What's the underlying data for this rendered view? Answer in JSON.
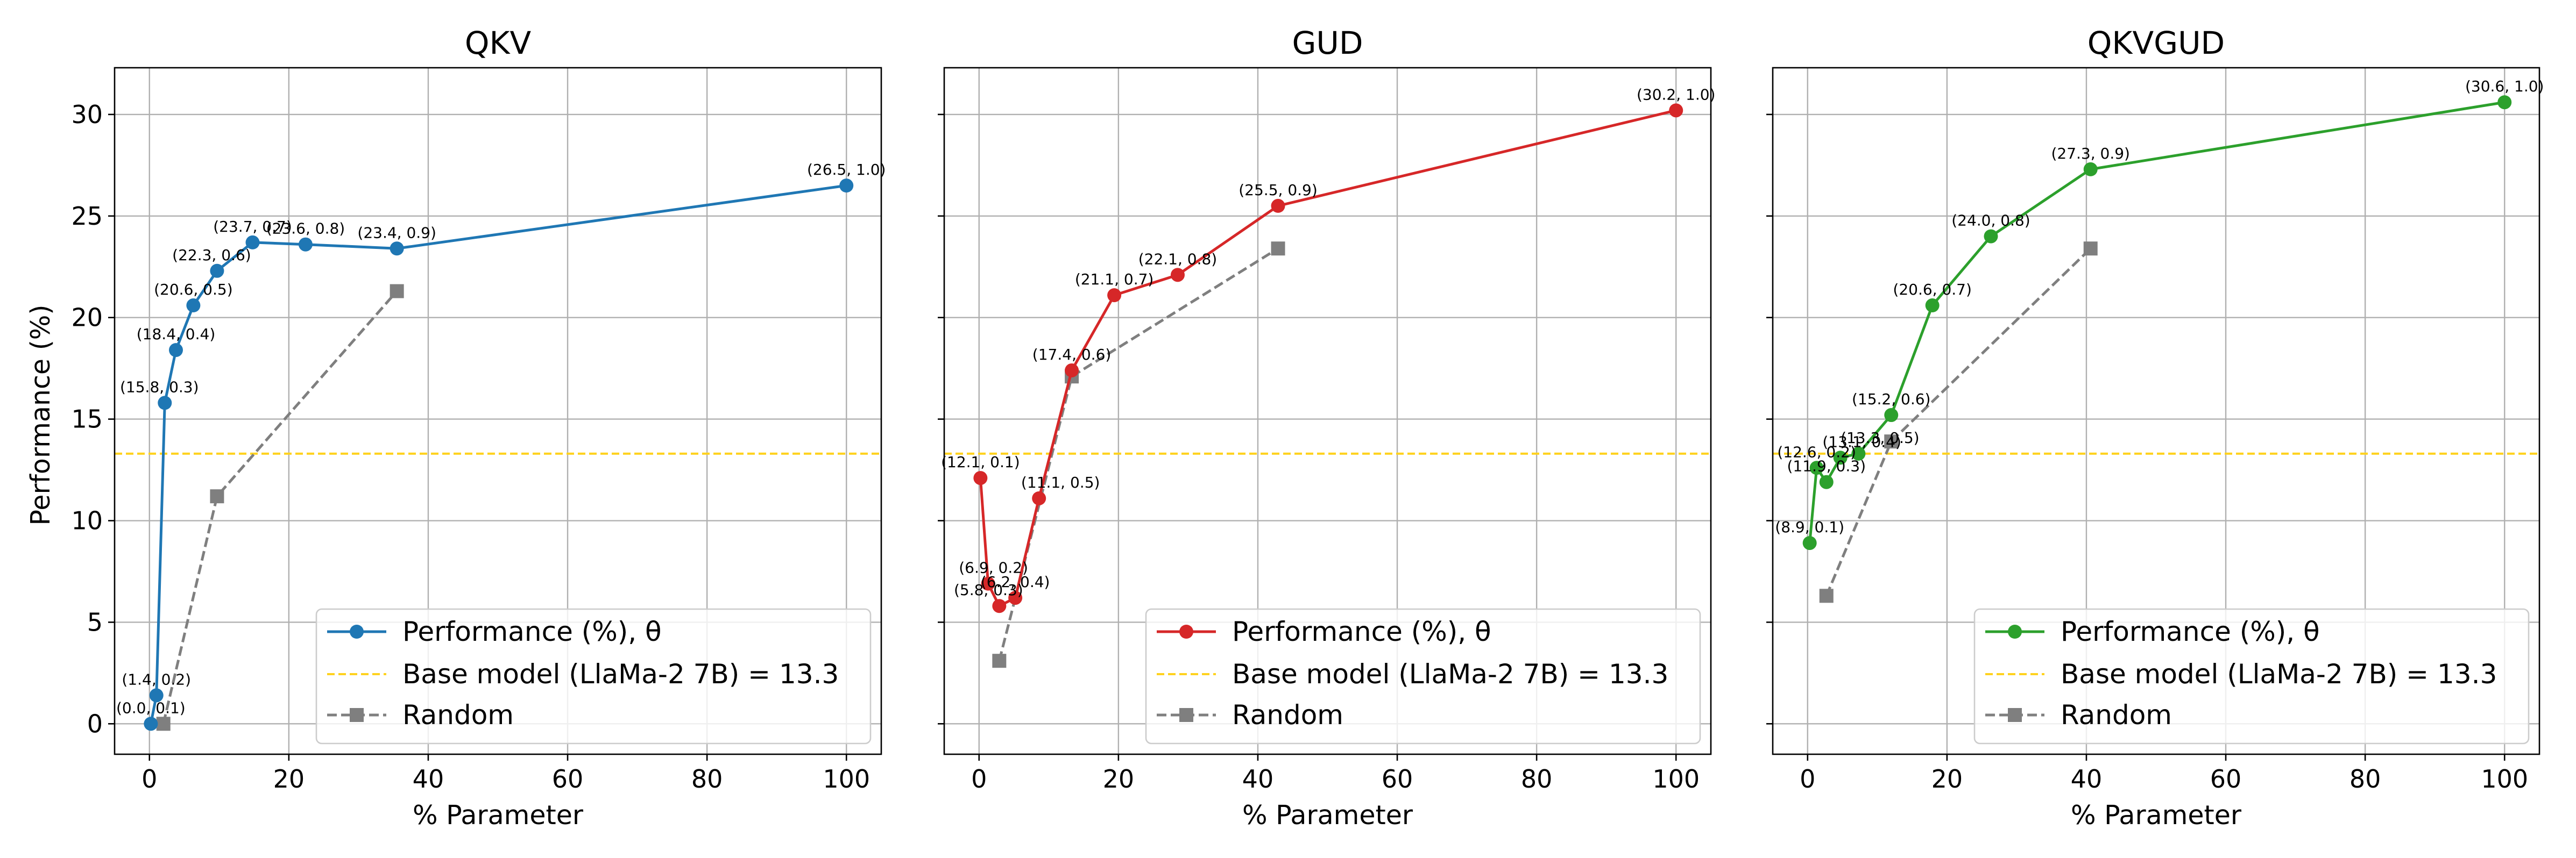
{
  "ylabel": "Performance (%)",
  "chart_data": [
    {
      "type": "line",
      "title": "QKV",
      "xlabel": "% Parameter",
      "xlim": [
        -5,
        105
      ],
      "ylim": [
        -1.5,
        32.3
      ],
      "xticks": [
        0,
        20,
        40,
        60,
        80,
        100
      ],
      "yticks": [
        0,
        5,
        10,
        15,
        20,
        25,
        30
      ],
      "grid": true,
      "legend_position": "lower-right",
      "color": "#1f77b4",
      "baseline": {
        "name": "Base model (LlaMa-2 7B) = 13.3",
        "value": 13.3,
        "color": "#ffd21f"
      },
      "series": [
        {
          "name": "Performance (%), θ",
          "x": [
            0.2,
            1.0,
            2.2,
            3.8,
            6.3,
            9.7,
            14.8,
            22.4,
            35.5,
            100
          ],
          "y": [
            0.0,
            1.4,
            15.8,
            18.4,
            20.6,
            22.3,
            23.7,
            23.6,
            23.4,
            26.5
          ],
          "labels": [
            "(0.0, 0.1)",
            "(1.4, 0.2)",
            "(15.8, 0.3)",
            "(18.4, 0.4)",
            "(20.6, 0.5)",
            "(22.3, 0.6)",
            "(23.7, 0.7)",
            "(23.6, 0.8)",
            "(23.4, 0.9)",
            "(26.5, 1.0)"
          ]
        },
        {
          "name": "Random",
          "color": "#7f7f7f",
          "x": [
            2.0,
            9.7,
            35.5
          ],
          "y": [
            0.0,
            11.2,
            21.3
          ]
        }
      ]
    },
    {
      "type": "line",
      "title": "GUD",
      "xlabel": "% Parameter",
      "xlim": [
        -5,
        105
      ],
      "ylim": [
        -1.5,
        32.3
      ],
      "xticks": [
        0,
        20,
        40,
        60,
        80,
        100
      ],
      "yticks": [
        0,
        5,
        10,
        15,
        20,
        25,
        30
      ],
      "grid": true,
      "legend_position": "lower-right",
      "color": "#d62728",
      "baseline": {
        "name": "Base model (LlaMa-2 7B) = 13.3",
        "value": 13.3,
        "color": "#ffd21f"
      },
      "series": [
        {
          "name": "Performance (%), θ",
          "x": [
            0.2,
            1.3,
            2.9,
            5.2,
            8.6,
            13.3,
            19.4,
            28.5,
            42.9,
            100
          ],
          "y": [
            12.1,
            6.9,
            5.8,
            6.2,
            11.1,
            17.4,
            21.1,
            22.1,
            25.5,
            30.2
          ],
          "labels": [
            "(12.1, 0.1)",
            "(6.9, 0.2)",
            "(5.8, 0.3)",
            "(6.2, 0.4)",
            "(11.1, 0.5)",
            "(17.4, 0.6)",
            "(21.1, 0.7)",
            "(22.1, 0.8)",
            "(25.5, 0.9)",
            "(30.2, 1.0)"
          ]
        },
        {
          "name": "Random",
          "color": "#7f7f7f",
          "x": [
            2.9,
            13.3,
            42.9
          ],
          "y": [
            3.1,
            17.1,
            23.4
          ]
        }
      ]
    },
    {
      "type": "line",
      "title": "QKVGUD",
      "xlabel": "% Parameter",
      "xlim": [
        -5,
        105
      ],
      "ylim": [
        -1.5,
        32.3
      ],
      "xticks": [
        0,
        20,
        40,
        60,
        80,
        100
      ],
      "yticks": [
        0,
        5,
        10,
        15,
        20,
        25,
        30
      ],
      "grid": true,
      "legend_position": "lower-right",
      "color": "#2ca02c",
      "baseline": {
        "name": "Base model (LlaMa-2 7B) = 13.3",
        "value": 13.3,
        "color": "#ffd21f"
      },
      "series": [
        {
          "name": "Performance (%), θ",
          "x": [
            0.3,
            1.3,
            2.7,
            4.7,
            7.3,
            12.0,
            17.9,
            26.3,
            40.6,
            100
          ],
          "y": [
            8.9,
            12.6,
            11.9,
            13.1,
            13.3,
            15.2,
            20.6,
            24.0,
            27.3,
            30.6
          ],
          "labels": [
            "(8.9, 0.1)",
            "(12.6, 0.2)",
            "(11.9, 0.3)",
            "(13.1, 0.4)",
            "(13.3, 0.5)",
            "(15.2, 0.6)",
            "(20.6, 0.7)",
            "(24.0, 0.8)",
            "(27.3, 0.9)",
            "(30.6, 1.0)"
          ]
        },
        {
          "name": "Random",
          "color": "#7f7f7f",
          "x": [
            2.7,
            12.0,
            40.6
          ],
          "y": [
            6.3,
            13.9,
            23.4
          ]
        }
      ]
    }
  ]
}
